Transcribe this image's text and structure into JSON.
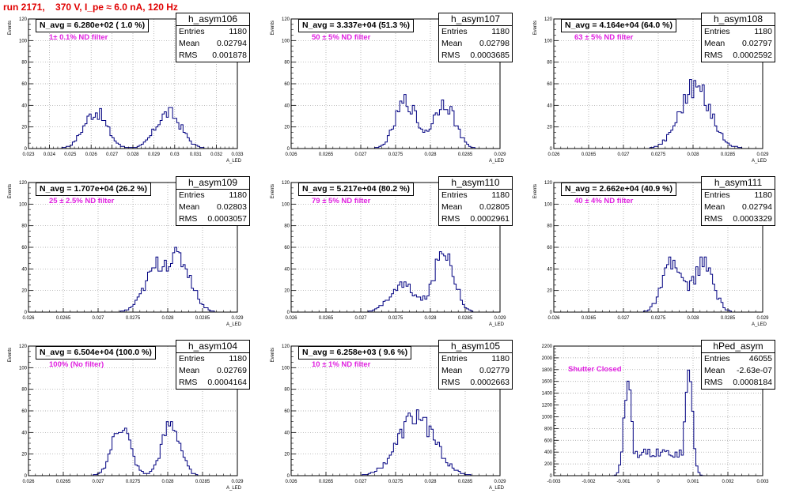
{
  "run_title": "run 2171,    370 V, I_pe ≈ 6.0 nA, 120 Hz",
  "colors": {
    "hist": "#000080",
    "title": "#e00000",
    "label": "#e020e0",
    "grid": "#9a9a9a"
  },
  "chart_data": [
    {
      "type": "histogram",
      "name": "h_asym106",
      "navg": "N_avg = 6.280e+02 ( 1.0 %)",
      "label": "1± 0.1% ND filter",
      "stats": {
        "entries": "1180",
        "mean": "0.02794",
        "rms": "0.001878"
      },
      "xlim": [
        0.023,
        0.033
      ],
      "ylim": [
        0,
        120
      ],
      "xticks": [
        "0.023",
        "0.024",
        "0.025",
        "0.026",
        "0.027",
        "0.028",
        "0.029",
        "0.03",
        "0.031",
        "0.032",
        "0.033"
      ],
      "yticks": [
        "0",
        "20",
        "40",
        "60",
        "80",
        "100",
        "120"
      ],
      "ylabel": "Events",
      "xlabel": "A_LED",
      "peaks": [
        {
          "mu": 0.0262,
          "sigma": 0.00055,
          "amp": 34
        },
        {
          "mu": 0.0297,
          "sigma": 0.0006,
          "amp": 33
        }
      ]
    },
    {
      "type": "histogram",
      "name": "h_asym107",
      "navg": "N_avg = 3.337e+04 (51.3 %)",
      "label": "50 ± 5% ND filter",
      "stats": {
        "entries": "1180",
        "mean": "0.02798",
        "rms": "0.0003685"
      },
      "xlim": [
        0.026,
        0.029
      ],
      "ylim": [
        0,
        120
      ],
      "xticks": [
        "0.026",
        "0.0265",
        "0.027",
        "0.0275",
        "0.028",
        "0.0285",
        "0.029"
      ],
      "yticks": [
        "0",
        "20",
        "40",
        "60",
        "80",
        "100",
        "120"
      ],
      "ylabel": "Events",
      "xlabel": "A_LED",
      "peaks": [
        {
          "mu": 0.02765,
          "sigma": 0.00015,
          "amp": 44
        },
        {
          "mu": 0.0282,
          "sigma": 0.00015,
          "amp": 44
        }
      ]
    },
    {
      "type": "histogram",
      "name": "h_asym108",
      "navg": "N_avg = 4.164e+04 (64.0 %)",
      "label": "63 ± 5% ND filter",
      "stats": {
        "entries": "1180",
        "mean": "0.02797",
        "rms": "0.0002592"
      },
      "xlim": [
        0.026,
        0.029
      ],
      "ylim": [
        0,
        120
      ],
      "xticks": [
        "0.026",
        "0.0265",
        "0.027",
        "0.0275",
        "0.028",
        "0.0285",
        "0.029"
      ],
      "yticks": [
        "0",
        "20",
        "40",
        "60",
        "80",
        "100",
        "120"
      ],
      "ylabel": "Events",
      "xlabel": "A_LED",
      "peaks": [
        {
          "mu": 0.02803,
          "sigma": 0.00022,
          "amp": 57
        }
      ]
    },
    {
      "type": "histogram",
      "name": "h_asym109",
      "navg": "N_avg = 1.707e+04 (26.2 %)",
      "label": "25 ± 2.5% ND filter",
      "stats": {
        "entries": "1180",
        "mean": "0.02803",
        "rms": "0.0003057"
      },
      "xlim": [
        0.026,
        0.029
      ],
      "ylim": [
        0,
        120
      ],
      "xticks": [
        "0.026",
        "0.0265",
        "0.027",
        "0.0275",
        "0.028",
        "0.0285",
        "0.029"
      ],
      "yticks": [
        "0",
        "20",
        "40",
        "60",
        "80",
        "100",
        "120"
      ],
      "ylabel": "Events",
      "xlabel": "A_LED",
      "peaks": [
        {
          "mu": 0.02785,
          "sigma": 0.00018,
          "amp": 40
        },
        {
          "mu": 0.0282,
          "sigma": 0.00016,
          "amp": 42
        }
      ]
    },
    {
      "type": "histogram",
      "name": "h_asym110",
      "navg": "N_avg = 5.217e+04 (80.2 %)",
      "label": "79 ± 5% ND filter",
      "stats": {
        "entries": "1180",
        "mean": "0.02805",
        "rms": "0.0002961"
      },
      "xlim": [
        0.026,
        0.029
      ],
      "ylim": [
        0,
        120
      ],
      "xticks": [
        "0.026",
        "0.0265",
        "0.027",
        "0.0275",
        "0.028",
        "0.0285",
        "0.029"
      ],
      "yticks": [
        "0",
        "20",
        "40",
        "60",
        "80",
        "100",
        "120"
      ],
      "ylabel": "Events",
      "xlabel": "A_LED",
      "peaks": [
        {
          "mu": 0.0276,
          "sigma": 0.00018,
          "amp": 25
        },
        {
          "mu": 0.0282,
          "sigma": 0.00014,
          "amp": 58
        }
      ]
    },
    {
      "type": "histogram",
      "name": "h_asym111",
      "navg": "N_avg = 2.662e+04 (40.9 %)",
      "label": "40 ± 4% ND filter",
      "stats": {
        "entries": "1180",
        "mean": "0.02794",
        "rms": "0.0003329"
      },
      "xlim": [
        0.026,
        0.029
      ],
      "ylim": [
        0,
        120
      ],
      "xticks": [
        "0.026",
        "0.0265",
        "0.027",
        "0.0275",
        "0.028",
        "0.0285",
        "0.029"
      ],
      "yticks": [
        "0",
        "20",
        "40",
        "60",
        "80",
        "100",
        "120"
      ],
      "ylabel": "Events",
      "xlabel": "A_LED",
      "peaks": [
        {
          "mu": 0.0277,
          "sigma": 0.00014,
          "amp": 44
        },
        {
          "mu": 0.02815,
          "sigma": 0.00014,
          "amp": 44
        }
      ]
    },
    {
      "type": "histogram",
      "name": "h_asym104",
      "navg": "N_avg = 6.504e+04 (100.0 %)",
      "label": "100% (No filter)",
      "stats": {
        "entries": "1180",
        "mean": "0.02769",
        "rms": "0.0004164"
      },
      "xlim": [
        0.026,
        0.029
      ],
      "ylim": [
        0,
        120
      ],
      "xticks": [
        "0.026",
        "0.0265",
        "0.027",
        "0.0275",
        "0.028",
        "0.0285",
        "0.029"
      ],
      "yticks": [
        "0",
        "20",
        "40",
        "60",
        "80",
        "100",
        "120"
      ],
      "ylabel": "Events",
      "xlabel": "A_LED",
      "peaks": [
        {
          "mu": 0.02733,
          "sigma": 0.00013,
          "amp": 47
        },
        {
          "mu": 0.02805,
          "sigma": 0.00013,
          "amp": 48
        }
      ]
    },
    {
      "type": "histogram",
      "name": "h_asym105",
      "navg": "N_avg = 6.258e+03 ( 9.6 %)",
      "label": "10 ± 1% ND filter",
      "stats": {
        "entries": "1180",
        "mean": "0.02779",
        "rms": "0.0002663"
      },
      "xlim": [
        0.026,
        0.029
      ],
      "ylim": [
        0,
        120
      ],
      "xticks": [
        "0.026",
        "0.0265",
        "0.027",
        "0.0275",
        "0.028",
        "0.0285",
        "0.029"
      ],
      "yticks": [
        "0",
        "20",
        "40",
        "60",
        "80",
        "100",
        "120"
      ],
      "ylabel": "Events",
      "xlabel": "A_LED",
      "peaks": [
        {
          "mu": 0.0278,
          "sigma": 0.00026,
          "amp": 55
        }
      ]
    },
    {
      "type": "histogram",
      "name": "hPed_asym",
      "navg": "",
      "label": "Shutter Closed",
      "stats": {
        "entries": "46055",
        "mean": "-2.63e-07",
        "rms": "0.0008184"
      },
      "xlim": [
        -0.003,
        0.003
      ],
      "ylim": [
        0,
        2300
      ],
      "xticks": [
        "-0.003",
        "-0.002",
        "-0.001",
        "0",
        "0.001",
        "0.002",
        "0.003"
      ],
      "yticks": [
        "0",
        "200",
        "400",
        "600",
        "800",
        "1000",
        "1200",
        "1400",
        "1600",
        "1800",
        "2000",
        "2200"
      ],
      "ylabel": "",
      "xlabel": "",
      "peaks": [
        {
          "mu": -0.00088,
          "sigma": 0.00011,
          "amp": 1650
        },
        {
          "mu": 0.00088,
          "sigma": 0.00011,
          "amp": 1750
        }
      ],
      "baseline": {
        "mu": 0,
        "sigma": 0.0008,
        "amp": 400
      }
    }
  ]
}
